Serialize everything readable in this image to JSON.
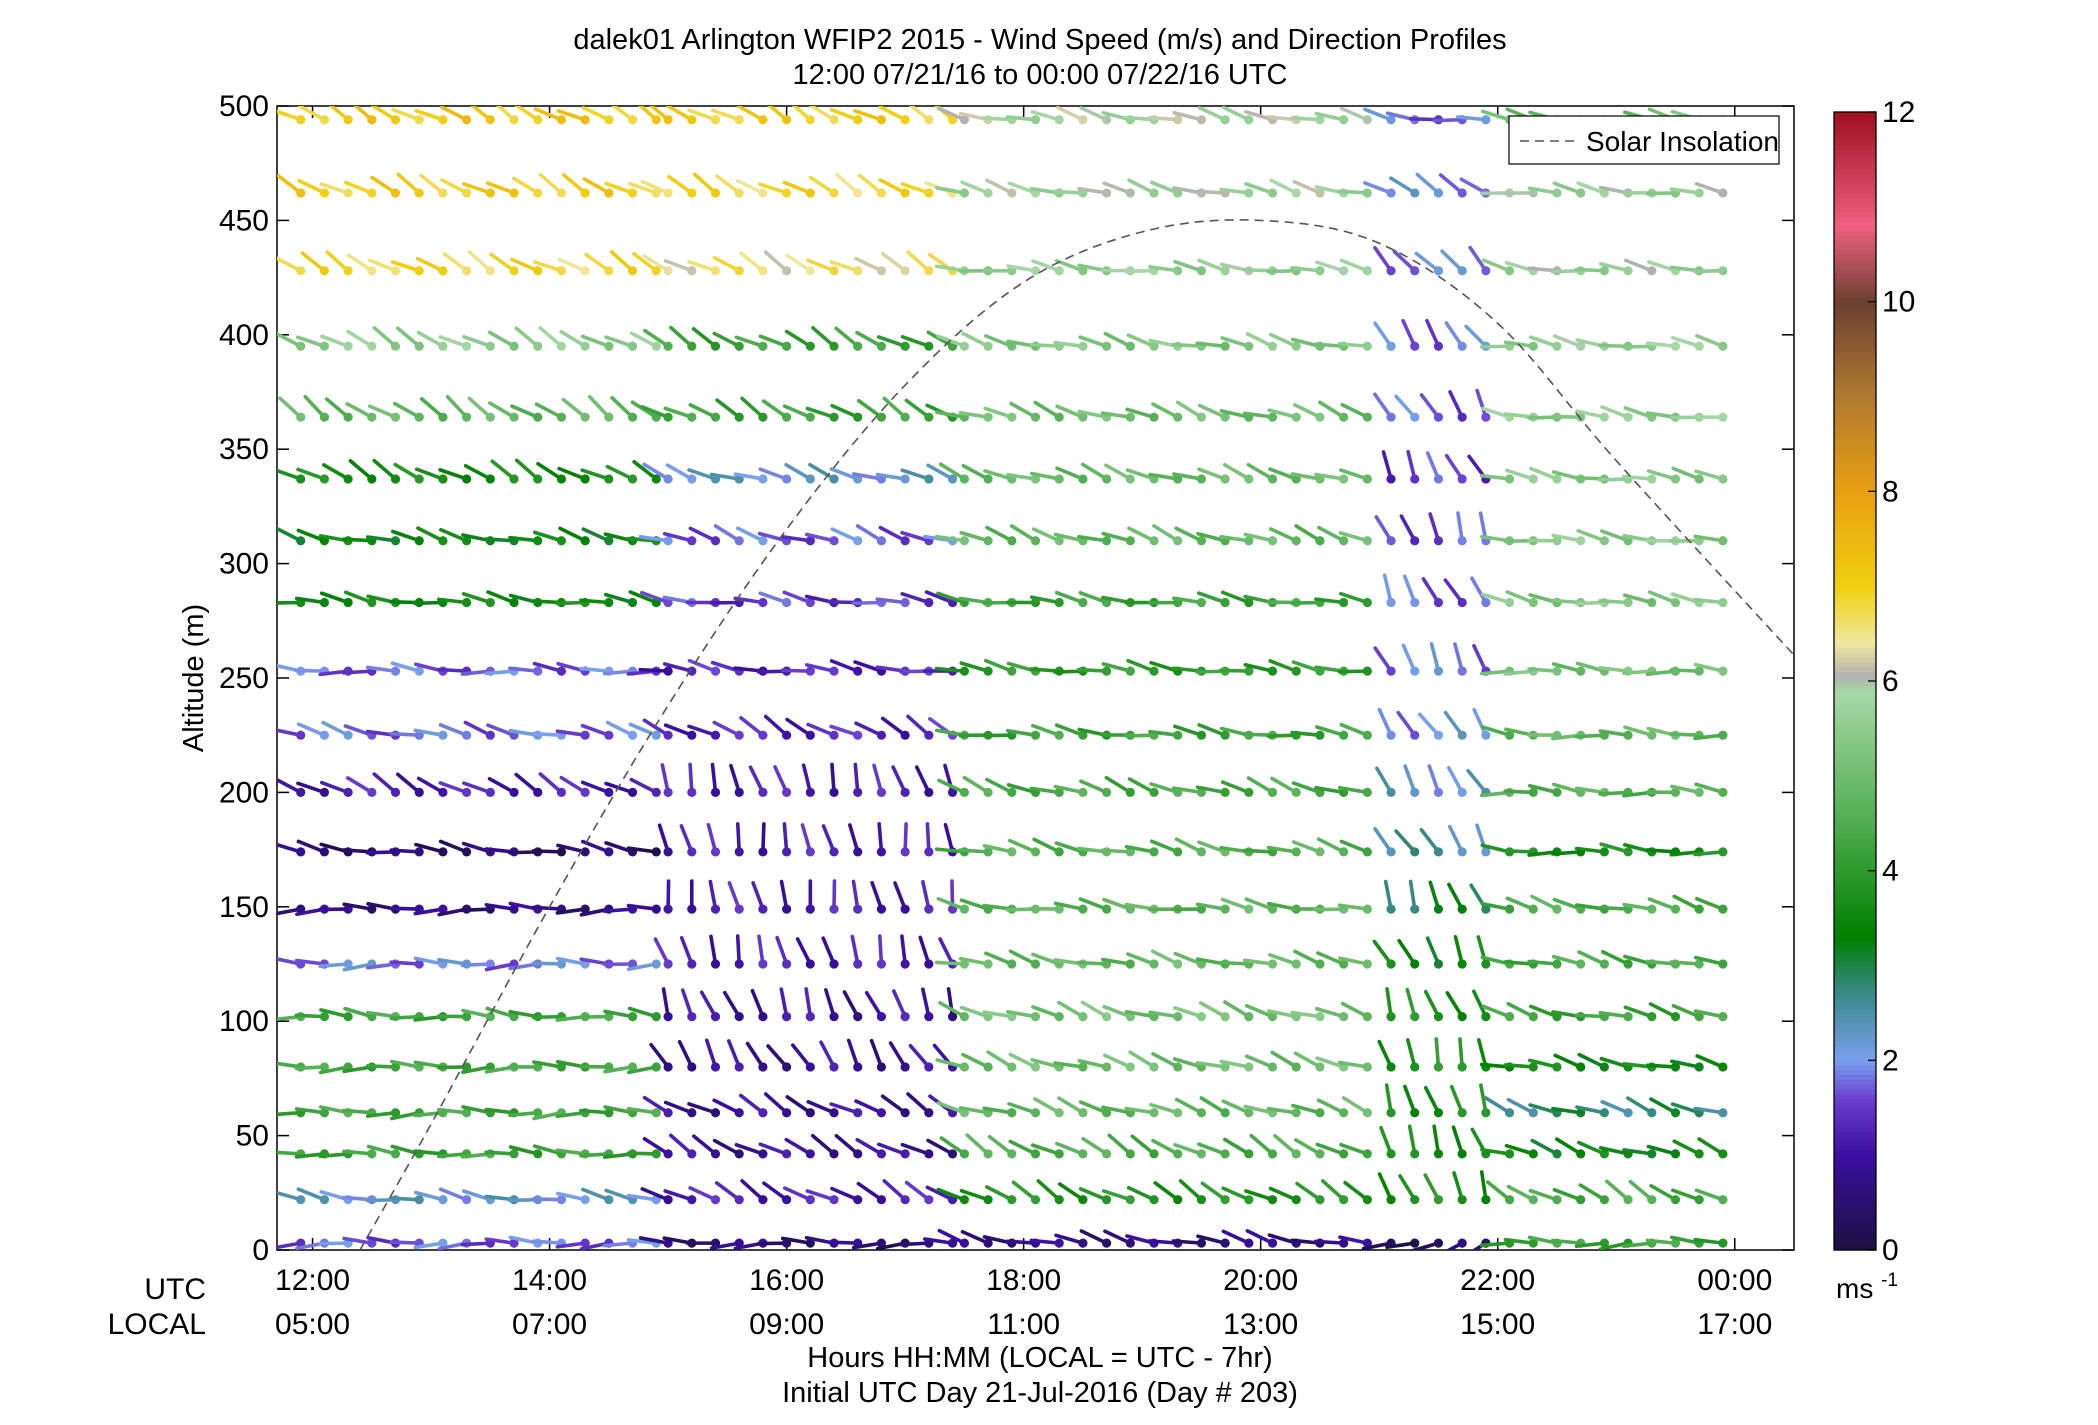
{
  "chart_data": {
    "type": "wind-barb-profile",
    "title": "dalek01 Arlington WFIP2 2015 - Wind Speed (m/s) and Direction Profiles",
    "subtitle": "12:00 07/21/16 to 00:00 07/22/16  UTC",
    "ylabel": "Altitude (m)",
    "ylim": [
      0,
      500
    ],
    "yticks": [
      0,
      50,
      100,
      150,
      200,
      250,
      300,
      350,
      400,
      450,
      500
    ],
    "xlim_utc_hours": [
      11.7,
      24.5
    ],
    "xticks_utc": [
      "12:00",
      "14:00",
      "16:00",
      "18:00",
      "20:00",
      "22:00",
      "00:00"
    ],
    "xticks_local": [
      "05:00",
      "07:00",
      "09:00",
      "11:00",
      "13:00",
      "15:00",
      "17:00"
    ],
    "xrow_labels": {
      "utc": "UTC",
      "local": "LOCAL"
    },
    "xlabel": "Hours HH:MM  (LOCAL = UTC - 7hr)",
    "xlabel2": "Initial UTC Day 21-Jul-2016 (Day # 203)",
    "legend": {
      "entry": "Solar Insolation",
      "style": "dashed",
      "position": "top-right"
    },
    "colorbar": {
      "range": [
        0,
        12
      ],
      "ticks": [
        0,
        2,
        4,
        6,
        8,
        10,
        12
      ],
      "unit_label": "ms",
      "unit_exponent": "-1",
      "stops": [
        {
          "v": 0,
          "c": "#1b1040"
        },
        {
          "v": 1,
          "c": "#3a0fa0"
        },
        {
          "v": 1.6,
          "c": "#6a3fd0"
        },
        {
          "v": 2,
          "c": "#7aa0ee"
        },
        {
          "v": 2.7,
          "c": "#3a8a8a"
        },
        {
          "v": 3.3,
          "c": "#008000"
        },
        {
          "v": 4.6,
          "c": "#55b055"
        },
        {
          "v": 5.9,
          "c": "#a8d8a8"
        },
        {
          "v": 6.05,
          "c": "#b0b0b0"
        },
        {
          "v": 6.4,
          "c": "#f0e8a0"
        },
        {
          "v": 7,
          "c": "#f0d010"
        },
        {
          "v": 8,
          "c": "#e8a010"
        },
        {
          "v": 9,
          "c": "#b07a30"
        },
        {
          "v": 10,
          "c": "#6b4030"
        },
        {
          "v": 10.8,
          "c": "#f06080"
        },
        {
          "v": 12,
          "c": "#a01020"
        }
      ]
    },
    "solar_insolation_curve": {
      "series_name": "Solar Insolation",
      "utc_hours": [
        12.4,
        13.0,
        14.0,
        15.0,
        16.0,
        17.0,
        18.0,
        19.0,
        20.0,
        21.0,
        22.0,
        23.0,
        24.5
      ],
      "altitude_m": [
        0,
        55,
        150,
        238,
        315,
        378,
        423,
        445,
        450,
        440,
        405,
        345,
        260
      ]
    },
    "altitude_levels_m": [
      3,
      22,
      42,
      60,
      80,
      102,
      125,
      149,
      174,
      200,
      225,
      253,
      283,
      310,
      337,
      364,
      395,
      428,
      462,
      494
    ],
    "time_start_utc": 11.9,
    "time_step_h": 0.2,
    "segments": [
      {
        "t0": 11.9,
        "t1": 14.9,
        "speeds": [
          1.7,
          2.2,
          4.2,
          4.3,
          4.3,
          4.3,
          1.9,
          0.7,
          0.5,
          1.2,
          1.8,
          1.7,
          3.5,
          3.4,
          3.6,
          4.8,
          5.5,
          6.8,
          7.0,
          7.1
        ],
        "dirs": [
          270,
          280,
          275,
          270,
          270,
          275,
          270,
          270,
          280,
          300,
          285,
          275,
          280,
          285,
          300,
          305,
          300,
          300,
          300,
          300
        ]
      },
      {
        "t0": 15.0,
        "t1": 17.4,
        "speeds": [
          0.6,
          1.2,
          0.9,
          0.9,
          0.9,
          1.0,
          1.2,
          1.2,
          1.2,
          1.2,
          1.3,
          1.3,
          1.5,
          1.7,
          2.2,
          4.2,
          4.2,
          6.5,
          6.8,
          7.0
        ],
        "dirs": [
          270,
          300,
          300,
          300,
          330,
          340,
          345,
          350,
          350,
          345,
          300,
          280,
          280,
          290,
          290,
          300,
          300,
          300,
          300,
          300
        ]
      },
      {
        "t0": 17.5,
        "t1": 21.0,
        "speeds": [
          0.7,
          3.8,
          4.5,
          4.8,
          5.0,
          5.1,
          4.8,
          4.7,
          4.6,
          4.4,
          4.2,
          4.0,
          4.2,
          4.8,
          4.9,
          5.0,
          5.3,
          5.6,
          5.8,
          5.9
        ],
        "dirs": [
          285,
          300,
          300,
          290,
          290,
          290,
          285,
          280,
          285,
          290,
          280,
          280,
          280,
          290,
          290,
          290,
          285,
          280,
          285,
          285
        ]
      },
      {
        "t0": 21.1,
        "t1": 22.0,
        "speeds": [
          0.3,
          3.7,
          3.6,
          3.7,
          3.8,
          3.7,
          3.4,
          3.0,
          2.5,
          2.2,
          2.0,
          1.9,
          1.7,
          1.6,
          1.5,
          1.7,
          1.8,
          1.9,
          2.0,
          1.8
        ],
        "dirs": [
          250,
          340,
          340,
          345,
          345,
          340,
          335,
          340,
          330,
          330,
          330,
          335,
          335,
          340,
          335,
          330,
          325,
          320,
          300,
          280
        ]
      },
      {
        "t0": 22.1,
        "t1": 24.0,
        "speeds": [
          4.2,
          4.4,
          3.4,
          2.8,
          3.5,
          4.2,
          4.4,
          4.5,
          3.6,
          4.6,
          4.8,
          5.1,
          5.3,
          5.4,
          5.4,
          5.5,
          5.6,
          5.7,
          5.7,
          5.0
        ],
        "dirs": [
          270,
          300,
          290,
          290,
          285,
          285,
          285,
          285,
          275,
          275,
          275,
          275,
          280,
          280,
          280,
          280,
          280,
          280,
          280,
          280
        ]
      }
    ]
  }
}
